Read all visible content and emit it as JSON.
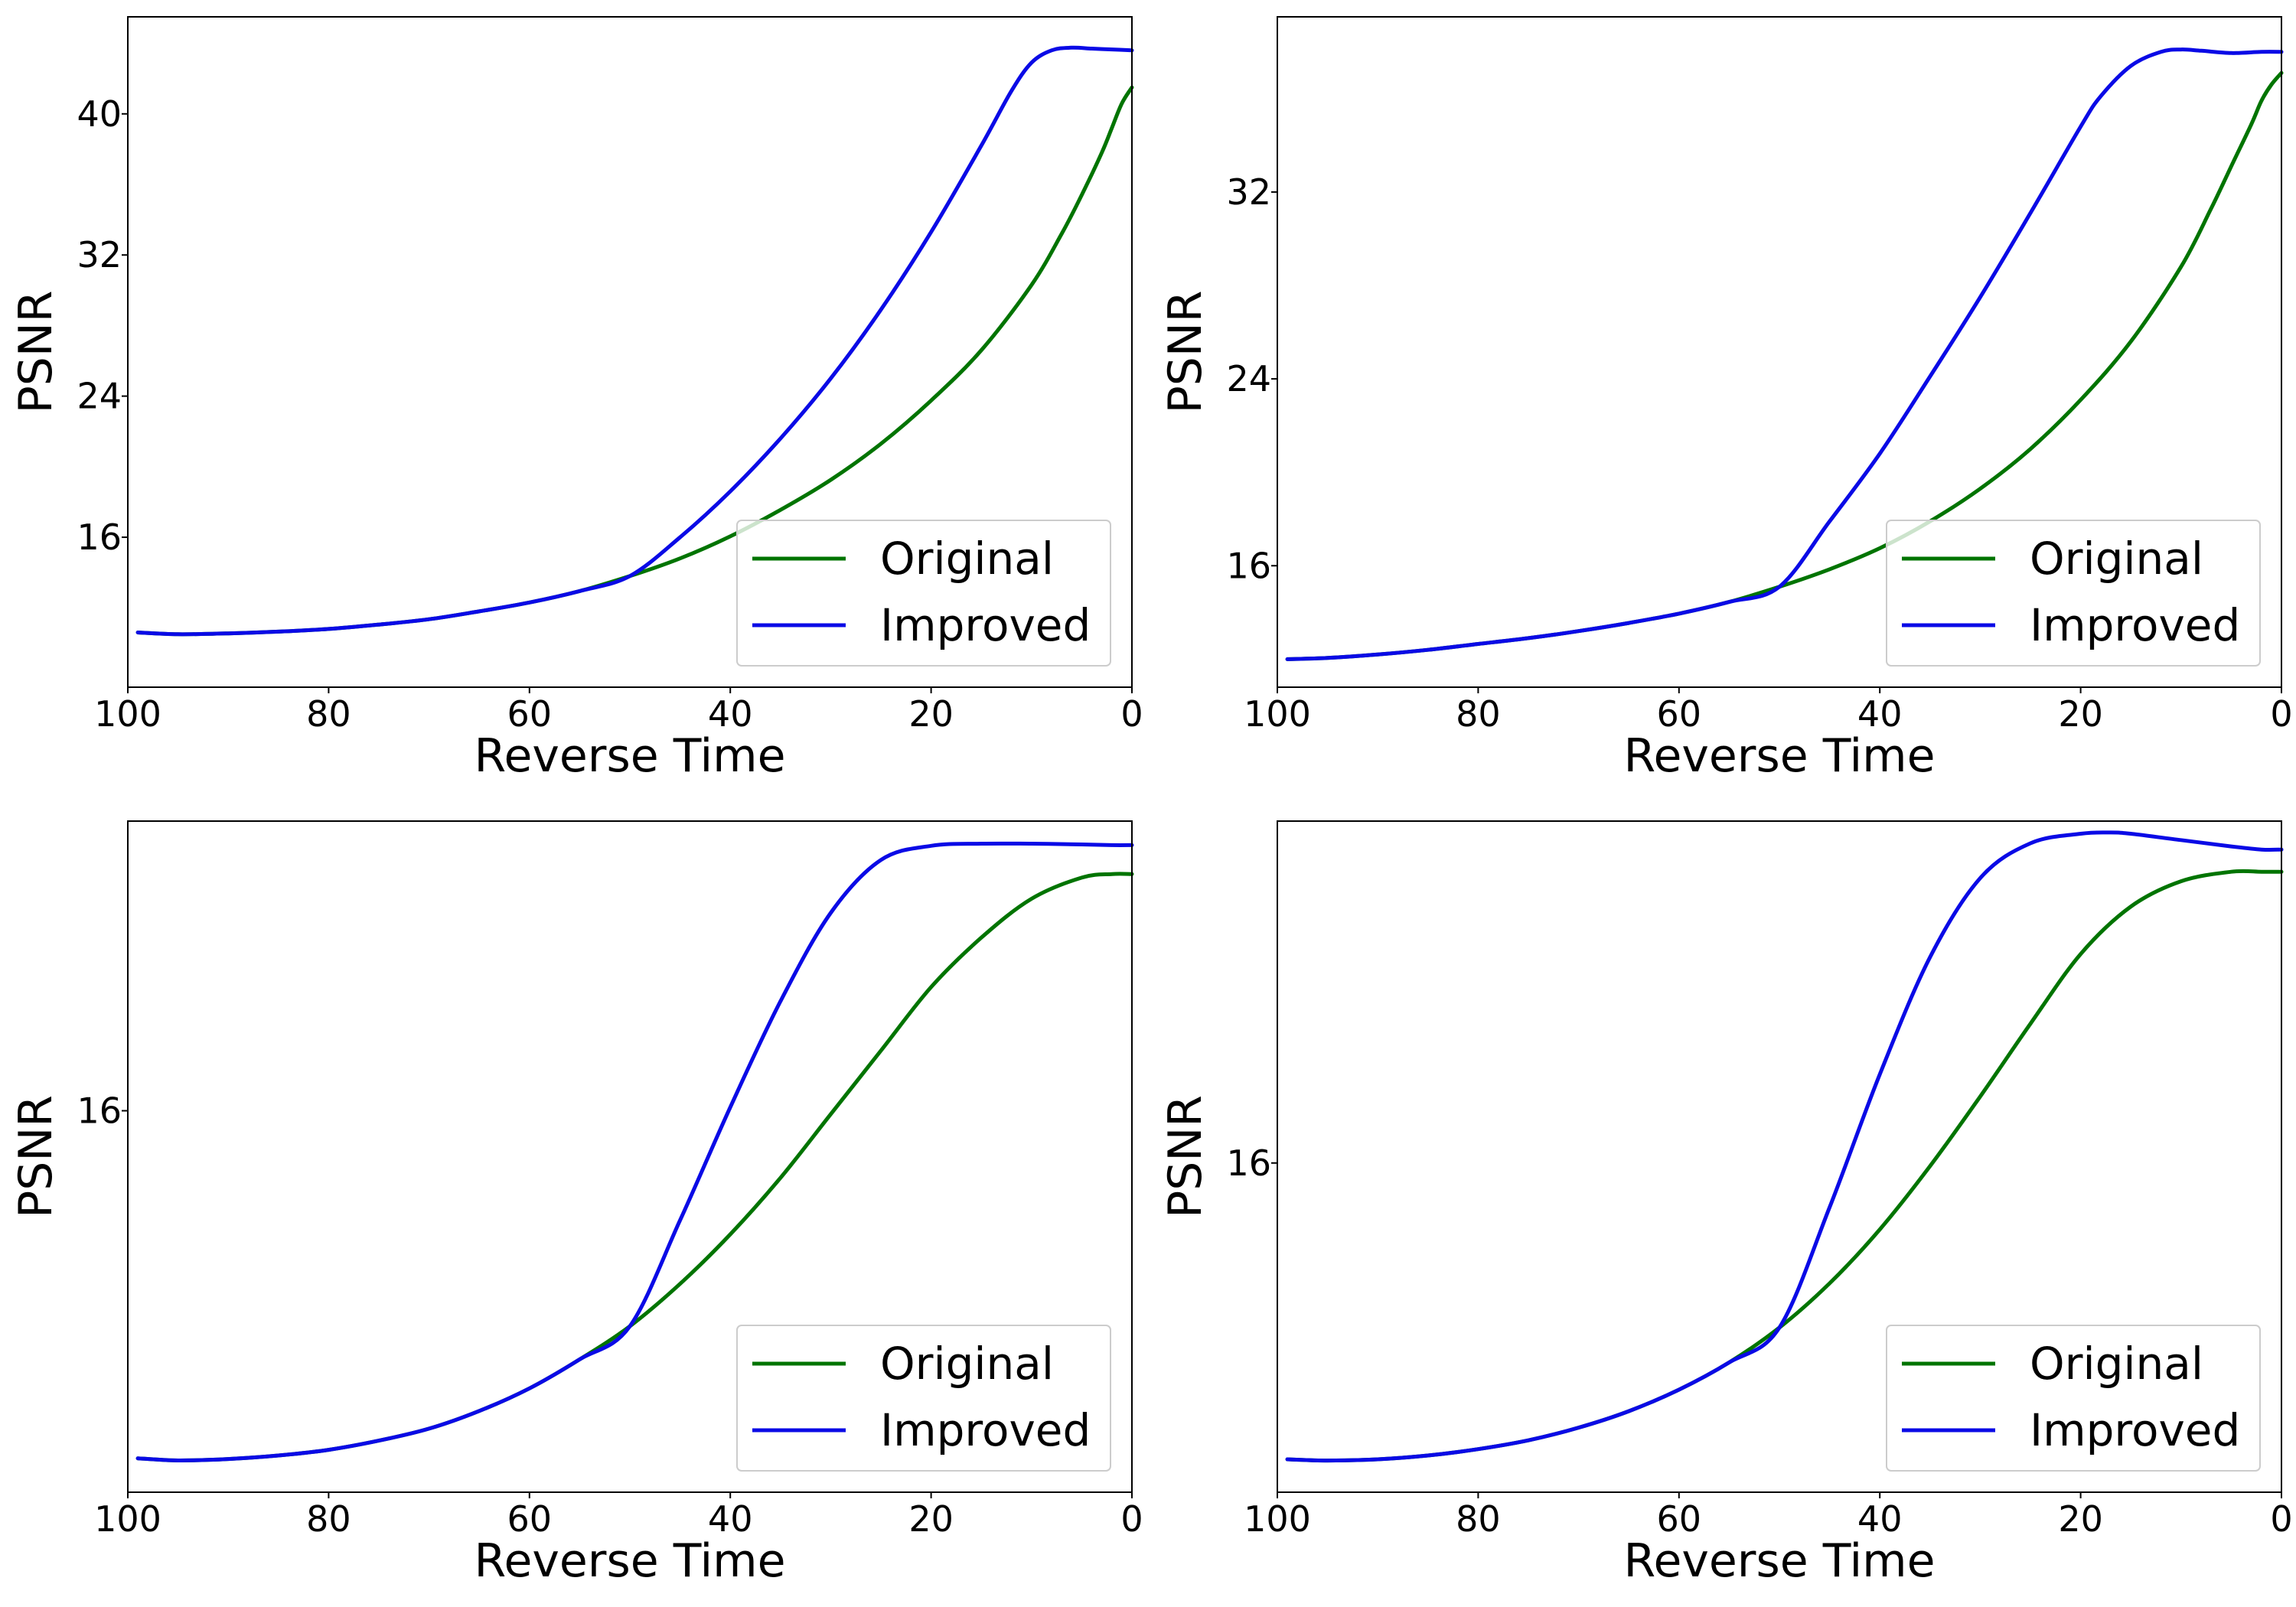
{
  "colors": {
    "original": "#007400",
    "improved": "#0a0ae6"
  },
  "chart_data": [
    {
      "type": "line",
      "xlabel": "Reverse Time",
      "ylabel": "PSNR",
      "xlim": [
        100,
        0
      ],
      "ylim": [
        7.5,
        45.5
      ],
      "x_ticks": [
        100,
        80,
        60,
        40,
        20,
        0
      ],
      "y_ticks": [
        16,
        24,
        32,
        40
      ],
      "grid": false,
      "legend_position": "lower-right",
      "series": [
        {
          "name": "Original",
          "color": "original",
          "x": [
            99,
            95,
            90,
            85,
            80,
            75,
            70,
            65,
            60,
            55,
            50,
            45,
            40,
            35,
            30,
            25,
            20,
            15,
            10,
            7,
            5,
            3,
            2,
            1,
            0
          ],
          "y": [
            10.6,
            10.5,
            10.55,
            10.65,
            10.8,
            11.05,
            11.35,
            11.8,
            12.3,
            12.95,
            13.8,
            14.8,
            16.05,
            17.55,
            19.25,
            21.3,
            23.75,
            26.6,
            30.3,
            33.2,
            35.4,
            37.8,
            39.2,
            40.6,
            41.5
          ]
        },
        {
          "name": "Improved",
          "color": "improved",
          "x": [
            99,
            95,
            90,
            85,
            80,
            75,
            70,
            65,
            60,
            55,
            50,
            45,
            40,
            35,
            30,
            25,
            20,
            15,
            12,
            10,
            8,
            6,
            4,
            2,
            0
          ],
          "y": [
            10.6,
            10.5,
            10.55,
            10.65,
            10.8,
            11.05,
            11.35,
            11.8,
            12.3,
            12.95,
            13.8,
            16.0,
            18.6,
            21.6,
            25.0,
            28.9,
            33.3,
            38.2,
            41.3,
            42.9,
            43.6,
            43.75,
            43.7,
            43.65,
            43.6
          ]
        }
      ]
    },
    {
      "type": "line",
      "xlabel": "Reverse Time",
      "ylabel": "PSNR",
      "xlim": [
        100,
        0
      ],
      "ylim": [
        10.8,
        39.5
      ],
      "x_ticks": [
        100,
        80,
        60,
        40,
        20,
        0
      ],
      "y_ticks": [
        16,
        24,
        32
      ],
      "grid": false,
      "legend_position": "lower-right",
      "series": [
        {
          "name": "Original",
          "color": "original",
          "x": [
            99,
            95,
            90,
            85,
            80,
            75,
            70,
            65,
            60,
            55,
            50,
            45,
            40,
            35,
            30,
            25,
            20,
            15,
            10,
            7,
            5,
            3,
            2,
            1,
            0
          ],
          "y": [
            12.0,
            12.05,
            12.2,
            12.4,
            12.65,
            12.9,
            13.2,
            13.55,
            13.95,
            14.45,
            15.1,
            15.85,
            16.75,
            17.9,
            19.3,
            21.0,
            23.1,
            25.6,
            28.8,
            31.3,
            33.1,
            34.9,
            35.9,
            36.6,
            37.1
          ]
        },
        {
          "name": "Improved",
          "color": "improved",
          "x": [
            99,
            95,
            90,
            85,
            80,
            75,
            70,
            65,
            60,
            55,
            50,
            45,
            40,
            35,
            30,
            25,
            20,
            18,
            15,
            12,
            10,
            8,
            5,
            2,
            0
          ],
          "y": [
            12.0,
            12.05,
            12.2,
            12.4,
            12.65,
            12.9,
            13.2,
            13.55,
            13.95,
            14.45,
            15.1,
            17.9,
            20.8,
            24.1,
            27.5,
            31.1,
            34.8,
            36.1,
            37.4,
            38.0,
            38.1,
            38.05,
            37.95,
            38.0,
            38.0
          ]
        }
      ]
    },
    {
      "type": "line",
      "xlabel": "Reverse Time",
      "ylabel": "PSNR",
      "xlim": [
        100,
        0
      ],
      "ylim": [
        10.6,
        20.1
      ],
      "x_ticks": [
        100,
        80,
        60,
        40,
        20,
        0
      ],
      "y_ticks": [
        16
      ],
      "grid": false,
      "legend_position": "lower-right",
      "series": [
        {
          "name": "Original",
          "color": "original",
          "x": [
            99,
            95,
            90,
            85,
            80,
            75,
            70,
            65,
            60,
            55,
            50,
            45,
            40,
            35,
            30,
            25,
            20,
            15,
            10,
            5,
            2,
            0
          ],
          "y": [
            11.08,
            11.05,
            11.07,
            11.12,
            11.2,
            11.33,
            11.5,
            11.75,
            12.07,
            12.48,
            12.95,
            13.55,
            14.25,
            15.05,
            15.95,
            16.85,
            17.75,
            18.45,
            19.0,
            19.3,
            19.35,
            19.35
          ]
        },
        {
          "name": "Improved",
          "color": "improved",
          "x": [
            99,
            95,
            90,
            85,
            80,
            75,
            70,
            65,
            60,
            55,
            50,
            45,
            40,
            35,
            30,
            25,
            20,
            15,
            10,
            5,
            2,
            0
          ],
          "y": [
            11.08,
            11.05,
            11.07,
            11.12,
            11.2,
            11.33,
            11.5,
            11.75,
            12.07,
            12.48,
            12.95,
            14.45,
            16.05,
            17.55,
            18.8,
            19.55,
            19.75,
            19.78,
            19.78,
            19.77,
            19.76,
            19.76
          ]
        }
      ]
    },
    {
      "type": "line",
      "xlabel": "Reverse Time",
      "ylabel": "PSNR",
      "xlim": [
        100,
        0
      ],
      "ylim": [
        10.8,
        21.4
      ],
      "x_ticks": [
        100,
        80,
        60,
        40,
        20,
        0
      ],
      "y_ticks": [
        16
      ],
      "grid": false,
      "legend_position": "lower-right",
      "series": [
        {
          "name": "Original",
          "color": "original",
          "x": [
            99,
            95,
            90,
            85,
            80,
            75,
            70,
            65,
            60,
            55,
            50,
            45,
            40,
            35,
            30,
            25,
            20,
            15,
            10,
            5,
            2,
            0
          ],
          "y": [
            11.32,
            11.3,
            11.32,
            11.38,
            11.48,
            11.62,
            11.82,
            12.08,
            12.42,
            12.85,
            13.4,
            14.1,
            14.95,
            15.95,
            17.05,
            18.2,
            19.3,
            20.05,
            20.45,
            20.6,
            20.6,
            20.6
          ]
        },
        {
          "name": "Improved",
          "color": "improved",
          "x": [
            99,
            95,
            90,
            85,
            80,
            75,
            70,
            65,
            60,
            55,
            50,
            45,
            40,
            35,
            30,
            25,
            20,
            17,
            15,
            10,
            5,
            2,
            0
          ],
          "y": [
            11.32,
            11.3,
            11.32,
            11.38,
            11.48,
            11.62,
            11.82,
            12.08,
            12.42,
            12.85,
            13.4,
            15.3,
            17.4,
            19.25,
            20.5,
            21.05,
            21.2,
            21.22,
            21.2,
            21.1,
            21.0,
            20.95,
            20.95
          ]
        }
      ]
    }
  ]
}
